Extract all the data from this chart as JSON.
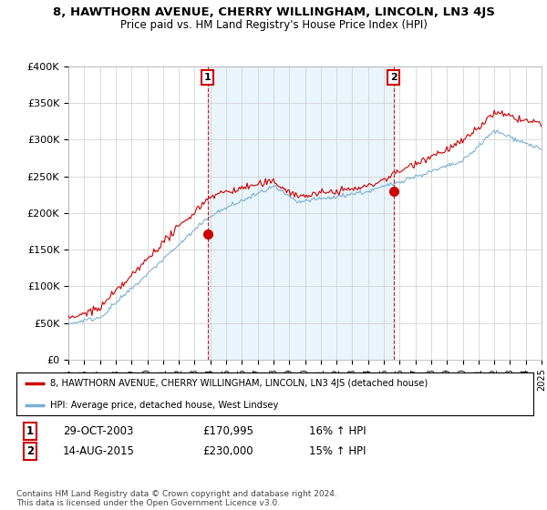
{
  "title": "8, HAWTHORN AVENUE, CHERRY WILLINGHAM, LINCOLN, LN3 4JS",
  "subtitle": "Price paid vs. HM Land Registry's House Price Index (HPI)",
  "ylim": [
    0,
    400000
  ],
  "yticks": [
    0,
    50000,
    100000,
    150000,
    200000,
    250000,
    300000,
    350000,
    400000
  ],
  "ytick_labels": [
    "£0",
    "£50K",
    "£100K",
    "£150K",
    "£200K",
    "£250K",
    "£300K",
    "£350K",
    "£400K"
  ],
  "line1_color": "#cc0000",
  "line2_color": "#7ab0d4",
  "fill_color": "#d6eaf8",
  "point1_year": 2003.83,
  "point1_price": 170995,
  "point2_year": 2015.62,
  "point2_price": 230000,
  "annotation1_date": "29-OCT-2003",
  "annotation1_price": "£170,995",
  "annotation1_hpi": "16% ↑ HPI",
  "annotation2_date": "14-AUG-2015",
  "annotation2_price": "£230,000",
  "annotation2_hpi": "15% ↑ HPI",
  "legend_line1": "8, HAWTHORN AVENUE, CHERRY WILLINGHAM, LINCOLN, LN3 4JS (detached house)",
  "legend_line2": "HPI: Average price, detached house, West Lindsey",
  "footnote": "Contains HM Land Registry data © Crown copyright and database right 2024.\nThis data is licensed under the Open Government Licence v3.0.",
  "background_color": "#ffffff",
  "grid_color": "#cccccc"
}
